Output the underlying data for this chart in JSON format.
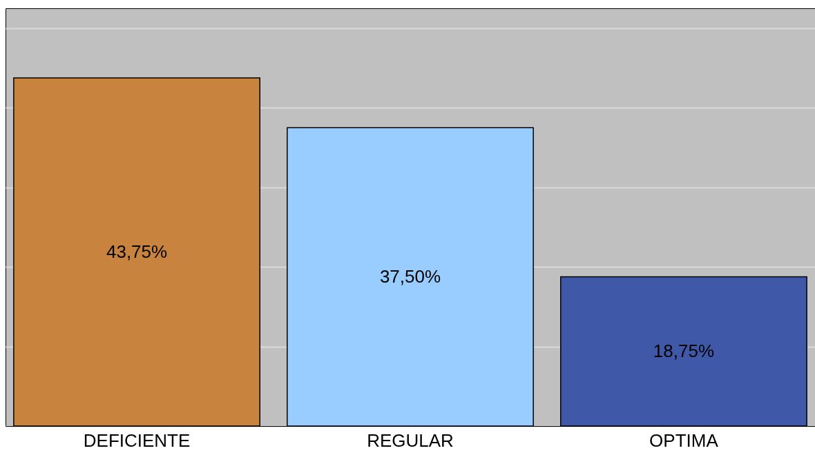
{
  "chart_data": {
    "type": "bar",
    "categories": [
      "DEFICIENTE",
      "REGULAR",
      "OPTIMA"
    ],
    "values": [
      43.75,
      37.5,
      18.75
    ],
    "colors": [
      "#c8843e",
      "#99ccff",
      "#3f59a8"
    ],
    "value_labels": [
      "43,75%",
      "37,50%",
      "18,75%"
    ],
    "ylim": [
      0,
      52.5
    ],
    "yticks": [
      0,
      10,
      20,
      30,
      40,
      50
    ],
    "tick_labels": "x",
    "grid": "y"
  }
}
